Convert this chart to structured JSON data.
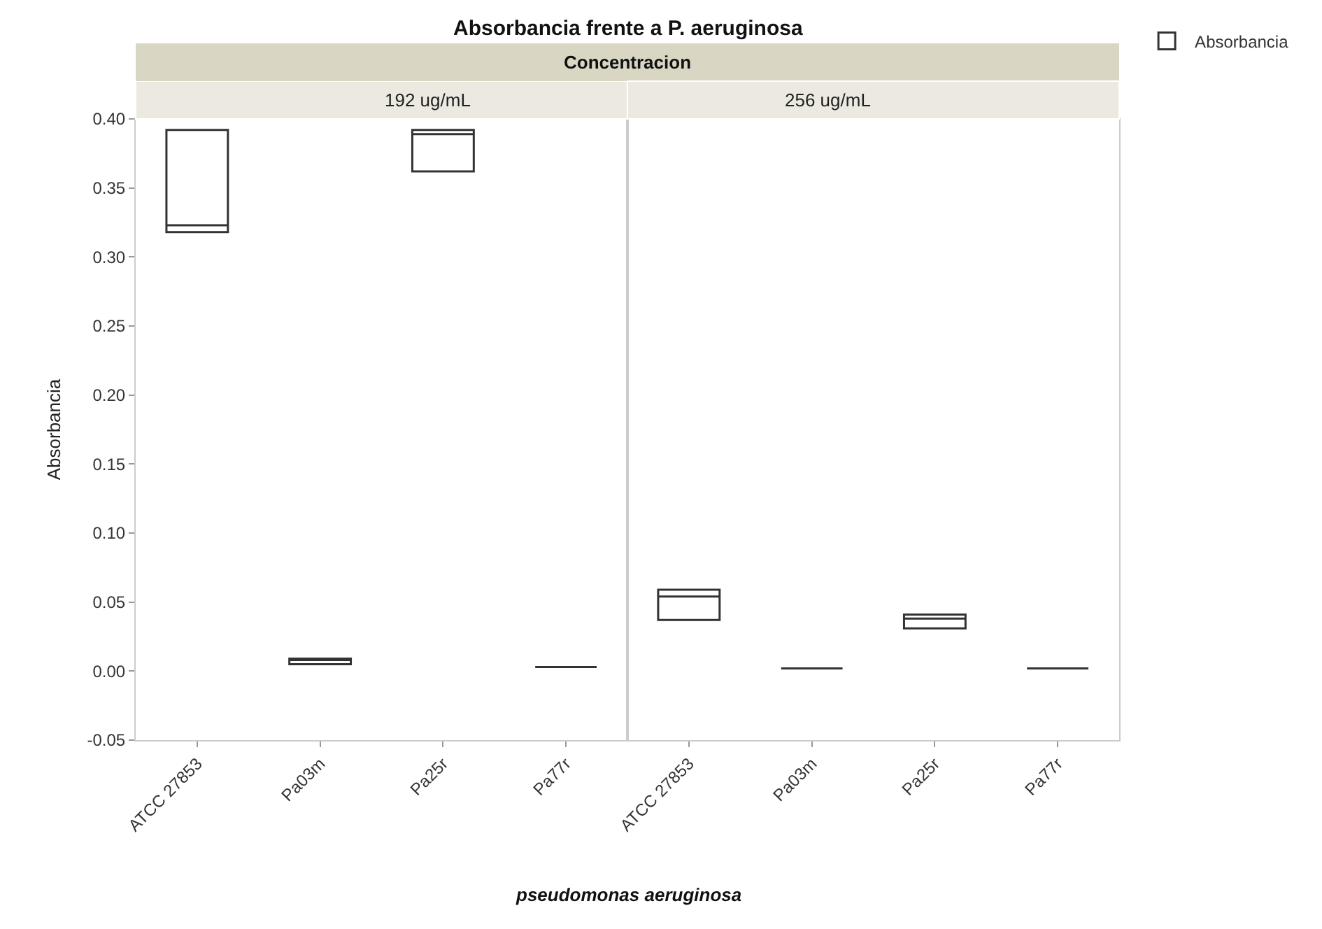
{
  "chart_data": [
    {
      "type": "box",
      "title": "192 ug/mL",
      "annotations": [
        "Absorbancia frente a P. aeruginosa",
        "Concentracion"
      ],
      "xlabel": "pseudomonas aeruginosa",
      "ylabel": "Absorbancia",
      "legend": "top right",
      "categories": [
        "ATCC 27853",
        "Pa03m",
        "Pa25r",
        "Pa77r"
      ],
      "series": [
        {
          "name": "Absorbancia",
          "color": "#333333",
          "boxes": [
            {
              "q1": 0.318,
              "median": 0.323,
              "q3": 0.392
            },
            {
              "q1": 0.005,
              "median": 0.008,
              "q3": 0.009
            },
            {
              "q1": 0.362,
              "median": 0.389,
              "q3": 0.392
            },
            {
              "q1": 0.003,
              "median": 0.003,
              "q3": 0.003
            }
          ]
        }
      ],
      "ylim": [
        -0.05,
        0.4
      ],
      "yticks": [
        {
          "value": -0.05,
          "label": "-0.05"
        },
        {
          "value": 0,
          "label": "0.00"
        },
        {
          "value": 0.05,
          "label": "0.05"
        },
        {
          "value": 0.1,
          "label": "0.10"
        },
        {
          "value": 0.15,
          "label": "0.15"
        },
        {
          "value": 0.2,
          "label": "0.20"
        },
        {
          "value": 0.25,
          "label": "0.25"
        },
        {
          "value": 0.3,
          "label": "0.30"
        },
        {
          "value": 0.35,
          "label": "0.35"
        },
        {
          "value": 0.4,
          "label": "0.40"
        }
      ]
    },
    {
      "type": "box",
      "title": "256 ug/mL",
      "tick_labels": "x",
      "categories": [
        "ATCC 27853",
        "Pa03m",
        "Pa25r",
        "Pa77r"
      ],
      "series": [
        {
          "color": "#333333",
          "boxes": [
            {
              "q1": 0.037,
              "median": 0.054,
              "q3": 0.059
            },
            {
              "q1": 0.002,
              "median": 0.002,
              "q3": 0.002
            },
            {
              "q1": 0.031,
              "median": 0.038,
              "q3": 0.041
            },
            {
              "q1": 0.002,
              "median": 0.002,
              "q3": 0.002
            }
          ]
        }
      ],
      "ylim": [
        -0.05,
        0.4
      ]
    }
  ]
}
